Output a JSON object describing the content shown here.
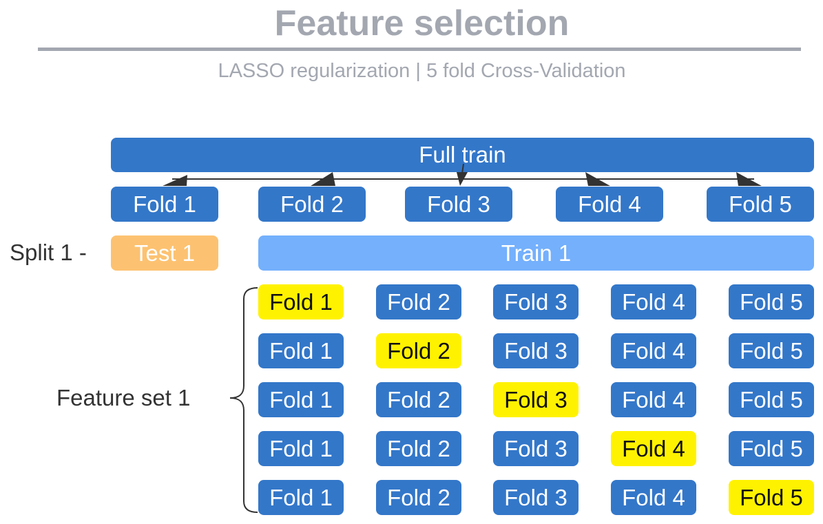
{
  "title": "Feature selection",
  "subtitle": "LASSO regularization  |  5 fold Cross-Validation",
  "full_train": "Full train",
  "folds": [
    "Fold 1",
    "Fold 2",
    "Fold 3",
    "Fold 4",
    "Fold 5"
  ],
  "split_label": "Split 1 -",
  "test_label": "Test 1",
  "train_label": "Train 1",
  "feature_set_label": "Feature set 1",
  "grid": {
    "rows": [
      [
        "Fold 1",
        "Fold 2",
        "Fold 3",
        "Fold 4",
        "Fold 5"
      ],
      [
        "Fold 1",
        "Fold 2",
        "Fold 3",
        "Fold 4",
        "Fold 5"
      ],
      [
        "Fold 1",
        "Fold 2",
        "Fold 3",
        "Fold 4",
        "Fold 5"
      ],
      [
        "Fold 1",
        "Fold 2",
        "Fold 3",
        "Fold 4",
        "Fold 5"
      ],
      [
        "Fold 1",
        "Fold 2",
        "Fold 3",
        "Fold 4",
        "Fold 5"
      ]
    ],
    "highlight_color": "#fff200"
  },
  "colors": {
    "primary": "#3377c9",
    "train": "#74b0fc",
    "test": "#fcc271",
    "title": "#a3a7b0"
  }
}
